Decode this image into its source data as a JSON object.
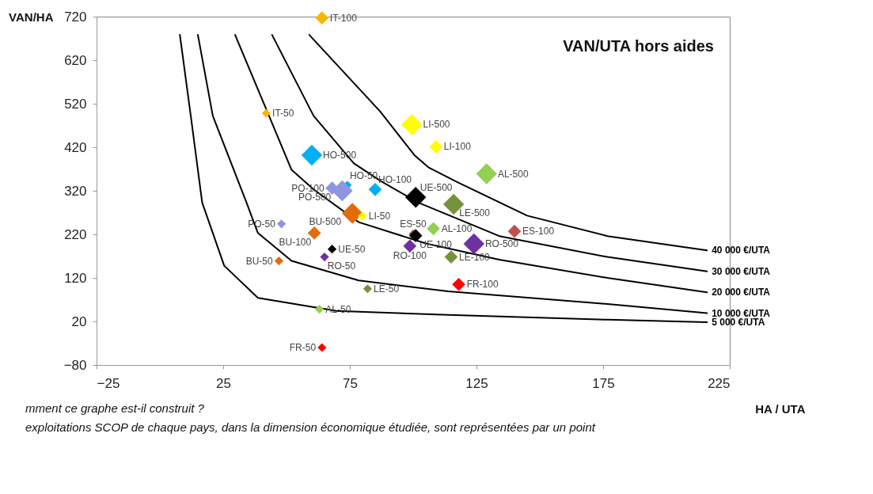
{
  "chart_data": {
    "type": "bubble",
    "title": "VAN/UTA hors aides",
    "xlabel": "HA / UTA",
    "ylabel": "VAN/HA",
    "xlim": [
      -25,
      225
    ],
    "xticks": [
      -25,
      25,
      75,
      125,
      175,
      225
    ],
    "ylim": [
      -80,
      720
    ],
    "yticks": [
      -80,
      20,
      120,
      220,
      320,
      420,
      520,
      620,
      720
    ],
    "grid": false,
    "marker": "diamond",
    "annotations": [
      "mment ce graphe est-il construit ?",
      "exploitations SCOP de chaque pays, dans la dimension économique étudiée, sont représentées par un point"
    ],
    "series": [
      {
        "name": "IT-100",
        "color": "#f5b800",
        "x": [
          64
        ],
        "values": [
          717
        ],
        "sizes": [
          0.4
        ]
      },
      {
        "name": "IT-50",
        "color": "#f5b800",
        "x": [
          42
        ],
        "values": [
          498
        ],
        "sizes": [
          0.18
        ]
      },
      {
        "name": "LI-500",
        "color": "#ffff00",
        "x": [
          99.5
        ],
        "values": [
          472
        ],
        "sizes": [
          1
        ]
      },
      {
        "name": "LI-100",
        "color": "#ffff00",
        "x": [
          109
        ],
        "values": [
          421
        ],
        "sizes": [
          0.4
        ]
      },
      {
        "name": "HO-500",
        "color": "#00b0f0",
        "x": [
          60
        ],
        "values": [
          402
        ],
        "sizes": [
          1
        ]
      },
      {
        "name": "AL-500",
        "color": "#92d050",
        "x": [
          129
        ],
        "values": [
          359
        ],
        "sizes": [
          1
        ]
      },
      {
        "name": "HO-50",
        "color": "#00b0f0",
        "x": [
          74
        ],
        "values": [
          333
        ],
        "sizes": [
          0.18
        ]
      },
      {
        "name": "PO-100",
        "color": "#8e96e0",
        "x": [
          68
        ],
        "values": [
          326
        ],
        "sizes": [
          0.4
        ]
      },
      {
        "name": "PO-500",
        "color": "#8e96e0",
        "x": [
          72
        ],
        "values": [
          320
        ],
        "sizes": [
          1
        ]
      },
      {
        "name": "HO-100",
        "color": "#00b0f0",
        "x": [
          85
        ],
        "values": [
          323
        ],
        "sizes": [
          0.4
        ]
      },
      {
        "name": "UE-500",
        "color": "#000000",
        "x": [
          101
        ],
        "values": [
          305
        ],
        "sizes": [
          1
        ]
      },
      {
        "name": "LE-500",
        "color": "#76923c",
        "x": [
          116
        ],
        "values": [
          289
        ],
        "sizes": [
          1
        ]
      },
      {
        "name": "BU-500",
        "color": "#e36c09",
        "x": [
          76
        ],
        "values": [
          268
        ],
        "sizes": [
          1
        ]
      },
      {
        "name": "LI-50",
        "color": "#ffff00",
        "x": [
          80
        ],
        "values": [
          262
        ],
        "sizes": [
          0.18
        ]
      },
      {
        "name": "PO-50",
        "color": "#8e96e0",
        "x": [
          48
        ],
        "values": [
          244
        ],
        "sizes": [
          0.18
        ]
      },
      {
        "name": "ES-50",
        "color": "#c0504d",
        "x": [
          100
        ],
        "values": [
          221
        ],
        "sizes": [
          0.18
        ]
      },
      {
        "name": "AL-100",
        "color": "#92d050",
        "x": [
          108
        ],
        "values": [
          233
        ],
        "sizes": [
          0.4
        ]
      },
      {
        "name": "UE-100",
        "color": "#000000",
        "x": [
          101
        ],
        "values": [
          217
        ],
        "sizes": [
          0.4
        ]
      },
      {
        "name": "BU-100",
        "color": "#e36c09",
        "x": [
          61
        ],
        "values": [
          223
        ],
        "sizes": [
          0.4
        ]
      },
      {
        "name": "ES-100",
        "color": "#c0504d",
        "x": [
          140
        ],
        "values": [
          227
        ],
        "sizes": [
          0.4
        ]
      },
      {
        "name": "RO-500",
        "color": "#7030a0",
        "x": [
          124
        ],
        "values": [
          198
        ],
        "sizes": [
          1
        ]
      },
      {
        "name": "RO-100",
        "color": "#7030a0",
        "x": [
          98.7
        ],
        "values": [
          193
        ],
        "sizes": [
          0.4
        ]
      },
      {
        "name": "UE-50",
        "color": "#000000",
        "x": [
          68
        ],
        "values": [
          186
        ],
        "sizes": [
          0.18
        ]
      },
      {
        "name": "RO-50",
        "color": "#7030a0",
        "x": [
          65
        ],
        "values": [
          168
        ],
        "sizes": [
          0.18
        ]
      },
      {
        "name": "LE-100",
        "color": "#76923c",
        "x": [
          115
        ],
        "values": [
          168
        ],
        "sizes": [
          0.4
        ]
      },
      {
        "name": "BU-50",
        "color": "#e36c09",
        "x": [
          47
        ],
        "values": [
          159
        ],
        "sizes": [
          0.18
        ]
      },
      {
        "name": "FR-100",
        "color": "#ff0000",
        "x": [
          118
        ],
        "values": [
          105
        ],
        "sizes": [
          0.4
        ]
      },
      {
        "name": "LE-50",
        "color": "#76923c",
        "x": [
          82
        ],
        "values": [
          95
        ],
        "sizes": [
          0.18
        ]
      },
      {
        "name": "AL-50",
        "color": "#92d050",
        "x": [
          63
        ],
        "values": [
          48
        ],
        "sizes": [
          0.18
        ]
      },
      {
        "name": "FR-50",
        "color": "#ff0000",
        "x": [
          64
        ],
        "values": [
          -40
        ],
        "sizes": [
          0.18
        ]
      },
      {
        "name": "40 000 €/UTA",
        "type": "line",
        "marker": "none",
        "color": "#000000",
        "x": [
          59,
          87,
          100.5,
          106,
          117,
          145,
          176.7,
          216
        ],
        "values": [
          678,
          502,
          402,
          374,
          341,
          263,
          216,
          183
        ]
      },
      {
        "name": "30 000 €/UTA",
        "type": "line",
        "marker": "none",
        "color": "#000000",
        "x": [
          44.3,
          60.7,
          76.6,
          87.3,
          102,
          134,
          176.7,
          216
        ],
        "values": [
          678,
          492,
          383,
          342,
          293,
          216,
          168,
          135
        ]
      },
      {
        "name": "20 000 €/UTA",
        "type": "line",
        "marker": "none",
        "color": "#000000",
        "x": [
          29.7,
          41.3,
          52,
          60.7,
          78.5,
          105,
          134,
          176.7,
          216
        ],
        "values": [
          678,
          517,
          368,
          323,
          248,
          199,
          162,
          120,
          87
        ]
      },
      {
        "name": "10 000 €/UTA",
        "type": "line",
        "marker": "none",
        "color": "#000000",
        "x": [
          15,
          20.9,
          34.2,
          38.7,
          52,
          78.5,
          113.8,
          176.7,
          216
        ],
        "values": [
          678,
          492,
          293,
          223,
          159,
          114,
          89,
          60,
          39
        ]
      },
      {
        "name": "5 000 €/UTA",
        "type": "line",
        "marker": "none",
        "color": "#000000",
        "x": [
          7.9,
          12.2,
          16.7,
          25.4,
          38.7,
          69.7,
          113.8,
          176.7,
          216
        ],
        "values": [
          678,
          492,
          293,
          148,
          74,
          44,
          35,
          24,
          18
        ]
      }
    ]
  }
}
